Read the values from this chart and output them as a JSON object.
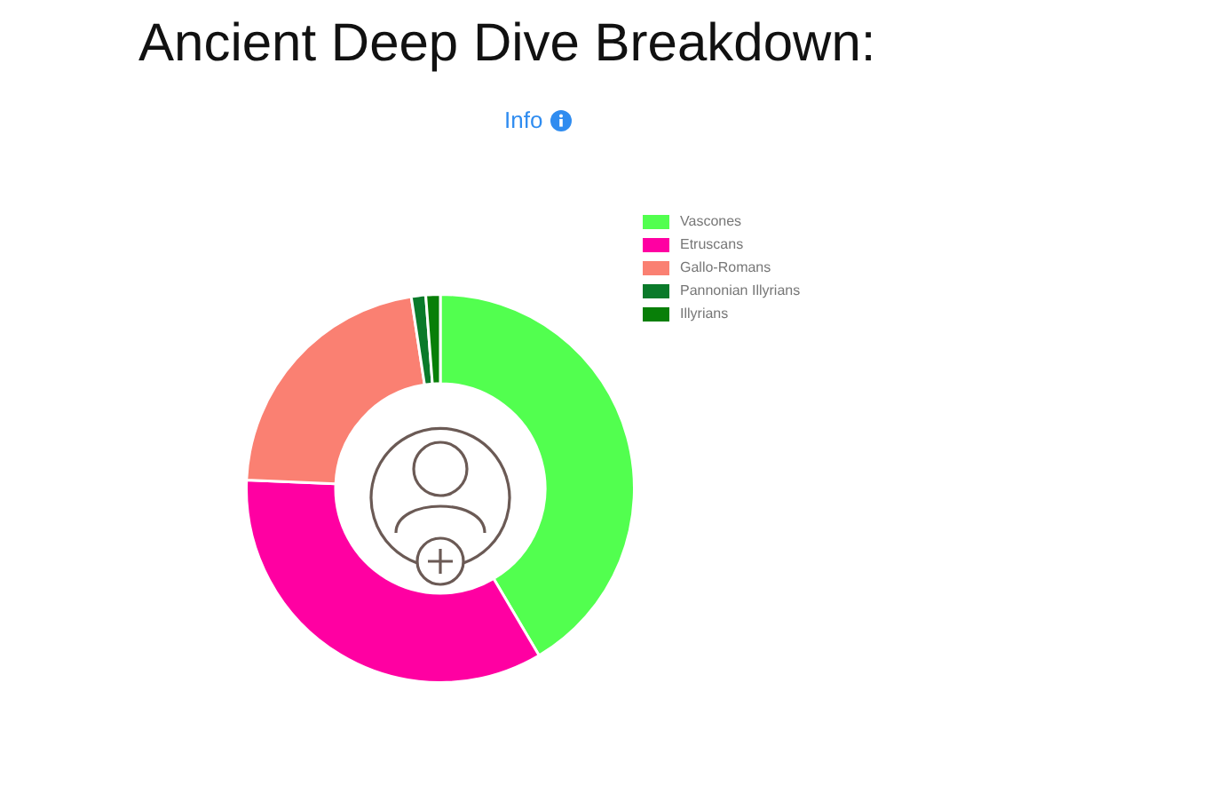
{
  "chart_data": {
    "type": "donut",
    "title": "Ancient Deep Dive Breakdown:",
    "subtitle": "Info",
    "categories": [
      "Vascones",
      "Etruscans",
      "Gallo-Romans",
      "Pannonian Illyrians",
      "Illyrians"
    ],
    "values": [
      41.5,
      34.2,
      21.9,
      1.2,
      1.2
    ],
    "colors": [
      "#52ff4f",
      "#ff00a2",
      "#fa8072",
      "#0a7a2a",
      "#087f08"
    ],
    "legend": "top right"
  }
}
